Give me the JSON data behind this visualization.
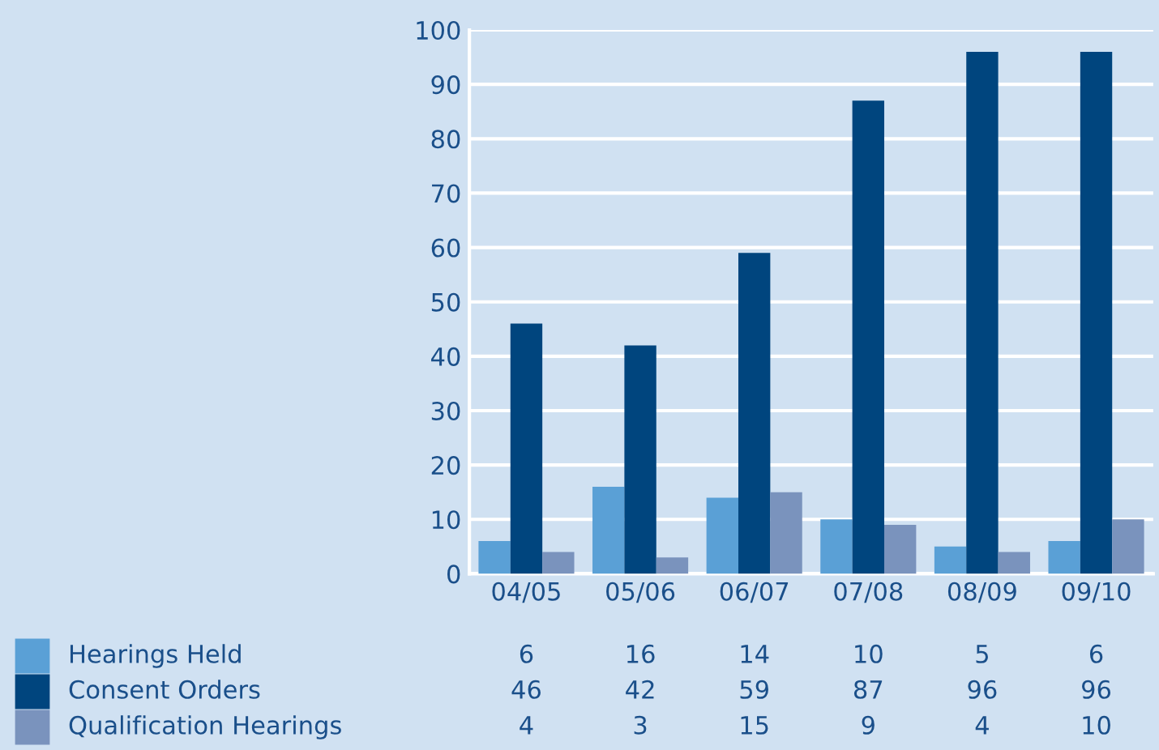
{
  "chart_data": {
    "type": "bar",
    "categories": [
      "04/05",
      "05/06",
      "06/07",
      "07/08",
      "08/09",
      "09/10"
    ],
    "series": [
      {
        "name": "Hearings Held",
        "color": "#5aa0d6",
        "values": [
          6,
          16,
          14,
          10,
          5,
          6
        ]
      },
      {
        "name": "Consent Orders",
        "color": "#00457e",
        "values": [
          46,
          42,
          59,
          87,
          96,
          96
        ]
      },
      {
        "name": "Qualification Hearings",
        "color": "#7a93bd",
        "values": [
          4,
          3,
          15,
          9,
          4,
          10
        ]
      }
    ],
    "ylim": [
      0,
      100
    ],
    "yticks": [
      0,
      10,
      20,
      30,
      40,
      50,
      60,
      70,
      80,
      90,
      100
    ],
    "grid": "y",
    "legend": "bottom left",
    "data_labels": true
  }
}
